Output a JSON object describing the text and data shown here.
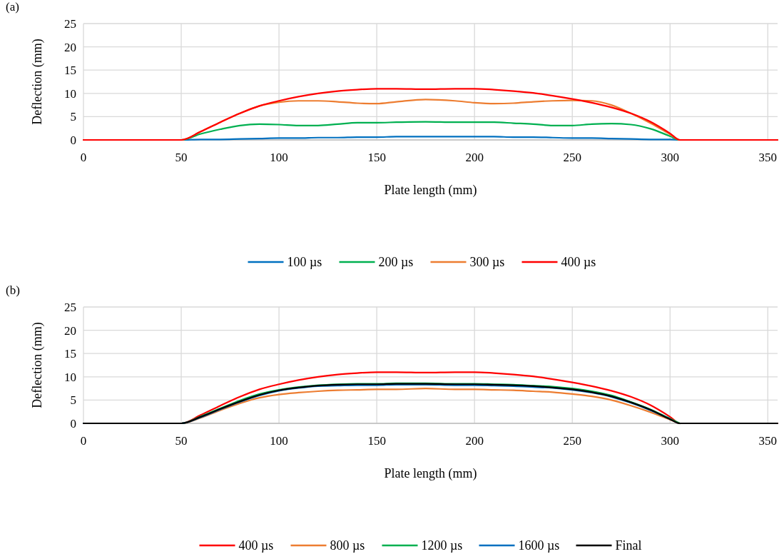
{
  "chart_data": [
    {
      "type": "line",
      "title": "(a)",
      "xlabel": "Plate length (mm)",
      "ylabel": "Deflection (mm)",
      "x": [
        0,
        50,
        60,
        70,
        80,
        90,
        100,
        110,
        120,
        130,
        140,
        150,
        160,
        175,
        190,
        200,
        210,
        220,
        230,
        240,
        250,
        260,
        270,
        280,
        290,
        300,
        305,
        320,
        355
      ],
      "xlim": [
        0,
        355
      ],
      "xticks": [
        0,
        50,
        100,
        150,
        200,
        250,
        300,
        350
      ],
      "ylim": [
        0,
        25
      ],
      "yticks": [
        0,
        5,
        10,
        15,
        20,
        25
      ],
      "grid": true,
      "legend": "bottom",
      "line_style": "solid",
      "series": [
        {
          "name": "100 µs",
          "color": "#0070c0",
          "values": [
            0,
            0,
            0.1,
            0.1,
            0.2,
            0.3,
            0.4,
            0.4,
            0.5,
            0.5,
            0.6,
            0.6,
            0.7,
            0.7,
            0.7,
            0.7,
            0.7,
            0.6,
            0.6,
            0.5,
            0.4,
            0.4,
            0.3,
            0.2,
            0.1,
            0.1,
            0,
            0,
            0
          ]
        },
        {
          "name": "200 µs",
          "color": "#00b050",
          "values": [
            0,
            0,
            1.3,
            2.3,
            3.1,
            3.4,
            3.3,
            3.1,
            3.1,
            3.4,
            3.7,
            3.7,
            3.8,
            3.9,
            3.8,
            3.8,
            3.8,
            3.6,
            3.4,
            3.1,
            3.1,
            3.4,
            3.5,
            3.3,
            2.4,
            0.8,
            0,
            0,
            0
          ]
        },
        {
          "name": "300 µs",
          "color": "#ed7d31",
          "values": [
            0,
            0,
            1.8,
            3.8,
            5.7,
            7.3,
            8.1,
            8.4,
            8.4,
            8.2,
            7.9,
            7.8,
            8.2,
            8.7,
            8.4,
            8.0,
            7.8,
            7.9,
            8.2,
            8.4,
            8.5,
            8.4,
            7.5,
            5.7,
            3.6,
            1.2,
            0,
            0,
            0
          ]
        },
        {
          "name": "400 µs",
          "color": "#ff0000",
          "values": [
            0,
            0,
            1.8,
            3.8,
            5.7,
            7.3,
            8.4,
            9.3,
            10.0,
            10.5,
            10.8,
            11.0,
            11.0,
            10.9,
            11.0,
            11.0,
            10.8,
            10.5,
            10.1,
            9.5,
            8.8,
            8.0,
            7.0,
            5.7,
            3.9,
            1.4,
            0,
            0,
            0
          ]
        }
      ]
    },
    {
      "type": "line",
      "title": "(b)",
      "xlabel": "Plate length (mm)",
      "ylabel": "Deflection (mm)",
      "x": [
        0,
        50,
        60,
        70,
        80,
        90,
        100,
        110,
        120,
        130,
        140,
        150,
        160,
        175,
        190,
        200,
        210,
        220,
        230,
        240,
        250,
        260,
        270,
        280,
        290,
        300,
        305,
        320,
        355
      ],
      "xlim": [
        0,
        355
      ],
      "xticks": [
        0,
        50,
        100,
        150,
        200,
        250,
        300,
        350
      ],
      "ylim": [
        0,
        25
      ],
      "yticks": [
        0,
        5,
        10,
        15,
        20,
        25
      ],
      "grid": true,
      "legend": "bottom",
      "line_style": "solid",
      "series": [
        {
          "name": "400 µs",
          "color": "#ff0000",
          "values": [
            0,
            0,
            1.8,
            3.8,
            5.7,
            7.3,
            8.4,
            9.3,
            10.0,
            10.5,
            10.8,
            11.0,
            11.0,
            10.9,
            11.0,
            11.0,
            10.8,
            10.5,
            10.1,
            9.5,
            8.8,
            8.0,
            7.0,
            5.7,
            3.9,
            1.4,
            0,
            0,
            0
          ]
        },
        {
          "name": "800 µs",
          "color": "#ed7d31",
          "values": [
            0,
            0,
            1.2,
            2.8,
            4.3,
            5.5,
            6.2,
            6.6,
            6.9,
            7.1,
            7.2,
            7.3,
            7.3,
            7.5,
            7.3,
            7.3,
            7.2,
            7.1,
            6.9,
            6.7,
            6.3,
            5.8,
            5.0,
            3.8,
            2.4,
            0.8,
            0,
            null,
            null
          ]
        },
        {
          "name": "1200 µs",
          "color": "#00b050",
          "values": [
            0,
            0,
            1.5,
            3.2,
            4.9,
            6.3,
            7.2,
            7.8,
            8.2,
            8.4,
            8.5,
            8.5,
            8.6,
            8.6,
            8.5,
            8.5,
            8.4,
            8.3,
            8.1,
            7.9,
            7.5,
            6.9,
            6.0,
            4.6,
            3.0,
            1.0,
            0,
            null,
            null
          ]
        },
        {
          "name": "1600 µs",
          "color": "#0070c0",
          "values": [
            0,
            0,
            1.3,
            3.0,
            4.6,
            6.0,
            7.0,
            7.6,
            8.0,
            8.1,
            8.2,
            8.2,
            8.3,
            8.3,
            8.2,
            8.2,
            8.1,
            8.0,
            7.8,
            7.6,
            7.2,
            6.6,
            5.7,
            4.4,
            2.8,
            0.9,
            null,
            null,
            null
          ]
        },
        {
          "name": "Final",
          "color": "#000000",
          "values": [
            0,
            0,
            1.4,
            3.1,
            4.7,
            6.1,
            7.1,
            7.7,
            8.1,
            8.3,
            8.4,
            8.4,
            8.5,
            8.5,
            8.4,
            8.4,
            8.3,
            8.2,
            8.0,
            7.7,
            7.3,
            6.7,
            5.8,
            4.5,
            2.9,
            0.9,
            0,
            0,
            0
          ]
        }
      ]
    }
  ]
}
